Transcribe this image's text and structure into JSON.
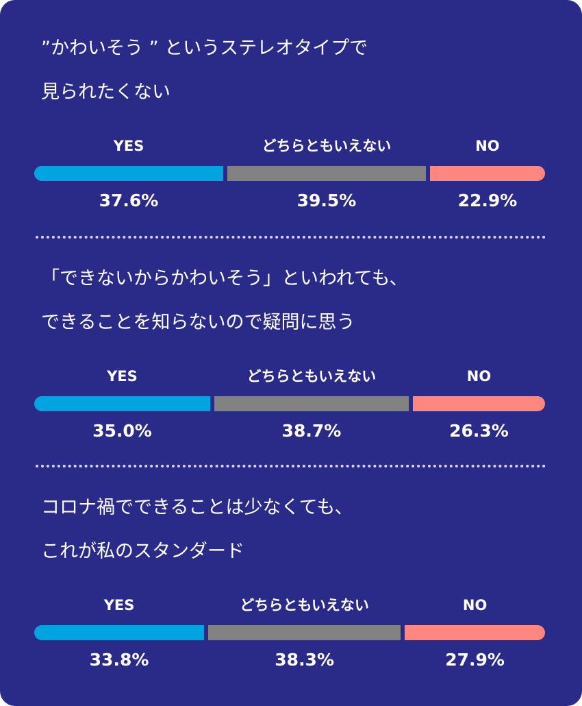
{
  "colors": {
    "background": "#2a2a88",
    "yes": "#00a5e0",
    "neutral": "#828282",
    "no": "#ff8780",
    "text": "#ffffff"
  },
  "chart_data": [
    {
      "type": "bar",
      "orientation": "stacked-horizontal",
      "title_lines": [
        "”かわいそう ” というステレオタイプで",
        "見られたくない"
      ],
      "categories": [
        "YES",
        "どちらともいえない",
        "NO"
      ],
      "values": [
        37.6,
        39.5,
        22.9
      ],
      "value_labels": [
        "37.6%",
        "39.5%",
        "22.9%"
      ]
    },
    {
      "type": "bar",
      "orientation": "stacked-horizontal",
      "title_lines": [
        "「できないからかわいそう」といわれても、",
        "できることを知らないので疑問に思う"
      ],
      "categories": [
        "YES",
        "どちらともいえない",
        "NO"
      ],
      "values": [
        35.0,
        38.7,
        26.3
      ],
      "value_labels": [
        "35.0%",
        "38.7%",
        "26.3%"
      ]
    },
    {
      "type": "bar",
      "orientation": "stacked-horizontal",
      "title_lines": [
        "コロナ禍でできることは少なくても、",
        "これが私のスタンダード"
      ],
      "categories": [
        "YES",
        "どちらともいえない",
        "NO"
      ],
      "values": [
        33.8,
        38.3,
        27.9
      ],
      "value_labels": [
        "33.8%",
        "38.3%",
        "27.9%"
      ]
    }
  ]
}
